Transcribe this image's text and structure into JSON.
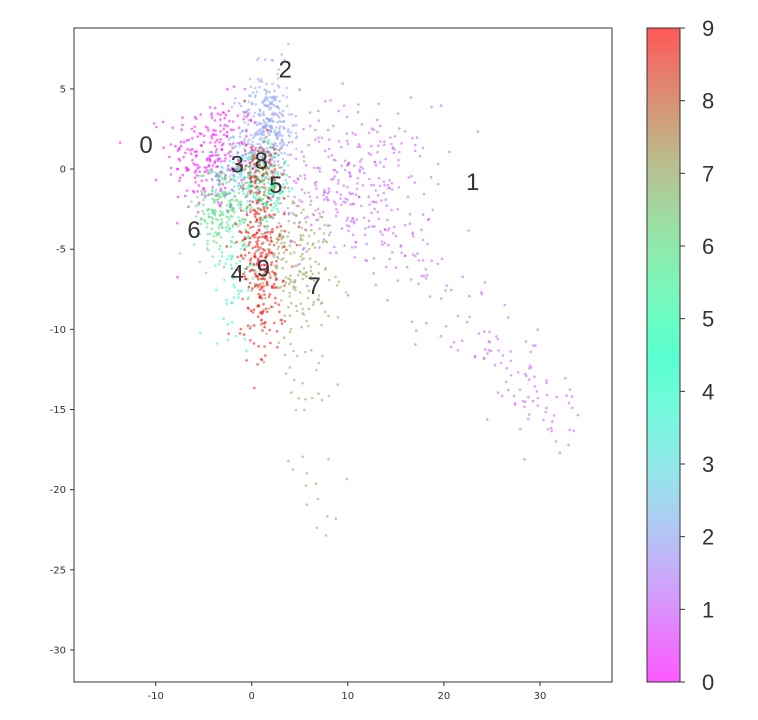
{
  "chart_data": {
    "type": "scatter",
    "title": "",
    "xlabel": "",
    "ylabel": "",
    "xlim": [
      -18.5,
      37.5
    ],
    "ylim": [
      -32,
      8.8
    ],
    "xticks": [
      "-10",
      "0",
      "10",
      "20",
      "30"
    ],
    "yticks": [
      "5",
      "0",
      "-5",
      "-10",
      "-15",
      "-20",
      "-25",
      "-30"
    ],
    "grid": false,
    "colormap": "rainbow",
    "colorbar": {
      "range": [
        0,
        9
      ],
      "tick_labels": [
        "0",
        "1",
        "2",
        "3",
        "4",
        "5",
        "6",
        "7",
        "8",
        "9"
      ]
    },
    "clusters": [
      {
        "name": "0",
        "label_pos": [
          -11,
          1.5
        ],
        "center": [
          -4,
          0.8
        ],
        "spread": [
          2.4,
          1.8
        ],
        "count": 260,
        "tail": null
      },
      {
        "name": "1",
        "label_pos": [
          23,
          -0.8
        ],
        "center": [
          10,
          -1
        ],
        "spread": [
          4.5,
          2.5
        ],
        "count": 320,
        "tail": {
          "end": [
            33,
            -17
          ],
          "count": 160
        }
      },
      {
        "name": "2",
        "label_pos": [
          3.5,
          6.2
        ],
        "center": [
          1.5,
          2.3
        ],
        "spread": [
          1.4,
          1.6
        ],
        "count": 300,
        "tail": {
          "end": [
            3,
            6.5
          ],
          "count": 40
        }
      },
      {
        "name": "3",
        "label_pos": [
          -1.5,
          0.3
        ],
        "center": [
          -1,
          -0.2
        ],
        "spread": [
          1.5,
          1.0
        ],
        "count": 120,
        "tail": null
      },
      {
        "name": "4",
        "label_pos": [
          -1.5,
          -6.5
        ],
        "center": [
          -1.5,
          -6
        ],
        "spread": [
          1.2,
          2.0
        ],
        "count": 70,
        "tail": null
      },
      {
        "name": "5",
        "label_pos": [
          2.5,
          -1
        ],
        "center": [
          1.5,
          -1.2
        ],
        "spread": [
          1.2,
          1.2
        ],
        "count": 140,
        "tail": null
      },
      {
        "name": "6",
        "label_pos": [
          -6,
          -3.8
        ],
        "center": [
          -3,
          -2.5
        ],
        "spread": [
          1.5,
          1.5
        ],
        "count": 220,
        "tail": null
      },
      {
        "name": "7",
        "label_pos": [
          6.5,
          -7.3
        ],
        "center": [
          4,
          -5.5
        ],
        "spread": [
          2.3,
          2.5
        ],
        "count": 230,
        "tail": {
          "end": [
            7,
            -21.5
          ],
          "count": 45
        }
      },
      {
        "name": "8",
        "label_pos": [
          1,
          0.5
        ],
        "center": [
          0.8,
          0.1
        ],
        "spread": [
          1.0,
          0.8
        ],
        "count": 100,
        "tail": null
      },
      {
        "name": "9",
        "label_pos": [
          1.2,
          -6.2
        ],
        "center": [
          1,
          -5.5
        ],
        "spread": [
          1.2,
          3.0
        ],
        "count": 280,
        "tail": null
      }
    ]
  }
}
